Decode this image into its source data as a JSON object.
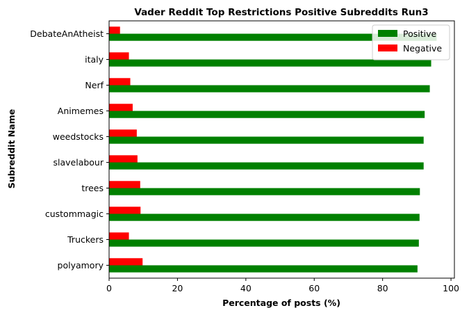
{
  "chart_data": {
    "type": "bar",
    "orientation": "horizontal",
    "title": "Vader Reddit Top Restrictions Positive Subreddits Run3",
    "xlabel": "Percentage of posts (%)",
    "ylabel": "Subreddit Name",
    "xlim": [
      0,
      101
    ],
    "xticks": [
      0,
      20,
      40,
      60,
      80,
      100
    ],
    "categories": [
      "polyamory",
      "Truckers",
      "custommagic",
      "trees",
      "slavelabour",
      "weedstocks",
      "Animemes",
      "Nerf",
      "italy",
      "DebateAnAtheist"
    ],
    "series": [
      {
        "name": "Positive",
        "color": "#008000",
        "values": [
          90.2,
          90.6,
          90.8,
          90.9,
          92.0,
          92.0,
          92.3,
          93.8,
          94.2,
          95.8
        ]
      },
      {
        "name": "Negative",
        "color": "#ff0000",
        "values": [
          9.8,
          5.8,
          9.2,
          9.1,
          8.3,
          8.1,
          6.9,
          6.2,
          5.8,
          3.2
        ]
      }
    ],
    "legend": {
      "position": "top-right",
      "entries": [
        "Positive",
        "Negative"
      ]
    },
    "grid": false
  }
}
